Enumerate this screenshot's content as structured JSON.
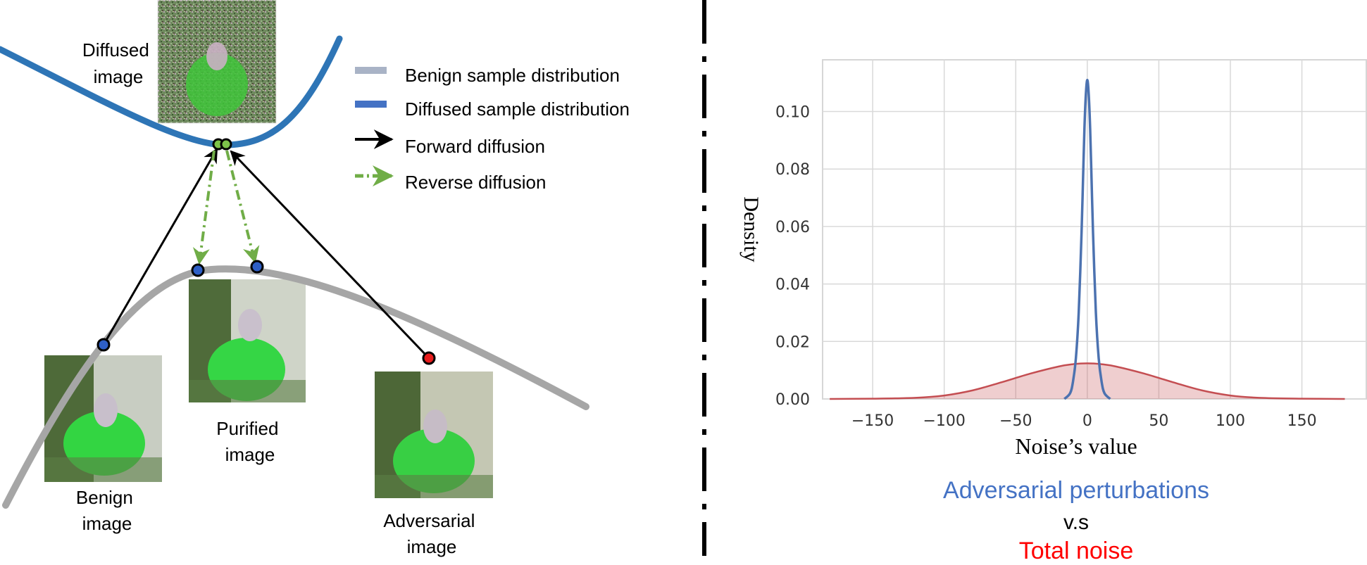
{
  "diagram": {
    "legend": {
      "items": [
        {
          "label": "Benign sample distribution",
          "color": "#a9b3c6"
        },
        {
          "label": "Diffused sample distribution",
          "color": "#4472c4"
        },
        {
          "label": "Forward diffusion",
          "color": "#000000"
        },
        {
          "label": "Reverse diffusion",
          "color": "#70ad47"
        }
      ]
    },
    "images": {
      "diffused": [
        "Diffused",
        "image"
      ],
      "purified": [
        "Purified",
        "image"
      ],
      "benign": [
        "Benign",
        "image"
      ],
      "adversarial": [
        "Adversarial",
        "image"
      ]
    },
    "colors": {
      "benign_curve": "#a6a6a6",
      "diffused_curve": "#2e75b6",
      "benign_point": "#2e5fc6",
      "adversarial_point": "#e81d1d",
      "diffused_point": "#7dc24a"
    }
  },
  "chart_data": {
    "type": "line",
    "xlabel": "Noise’s value",
    "ylabel": "Density",
    "xlim": [
      -185,
      195
    ],
    "ylim": [
      0,
      0.118
    ],
    "x_ticks": [
      -150,
      -100,
      -50,
      0,
      50,
      100,
      150
    ],
    "y_ticks": [
      0.0,
      0.02,
      0.04,
      0.06,
      0.08,
      0.1
    ],
    "x_tick_labels": [
      "−150",
      "−100",
      "−50",
      "0",
      "50",
      "100",
      "150"
    ],
    "y_tick_labels": [
      "0.00",
      "0.02",
      "0.04",
      "0.06",
      "0.08",
      "0.10"
    ],
    "grid": true,
    "series": [
      {
        "name": "Adversarial perturbations",
        "color": "#4c72b0",
        "fill": false,
        "x": [
          -16,
          -12,
          -10,
          -8,
          -6,
          -4,
          -3,
          -2,
          -1,
          0,
          1,
          2,
          3,
          4,
          6,
          8,
          10,
          12,
          16
        ],
        "y": [
          0.0,
          0.002,
          0.006,
          0.014,
          0.03,
          0.058,
          0.076,
          0.094,
          0.106,
          0.111,
          0.106,
          0.094,
          0.076,
          0.058,
          0.03,
          0.014,
          0.006,
          0.002,
          0.0
        ]
      },
      {
        "name": "Total noise",
        "color": "#c44e52",
        "fill": true,
        "x": [
          -180,
          -150,
          -120,
          -100,
          -80,
          -60,
          -40,
          -20,
          -10,
          0,
          10,
          20,
          40,
          60,
          80,
          100,
          120,
          150,
          180
        ],
        "y": [
          0.0,
          0.0001,
          0.0004,
          0.0012,
          0.003,
          0.0058,
          0.0088,
          0.0113,
          0.0121,
          0.0124,
          0.0121,
          0.0113,
          0.0088,
          0.0058,
          0.003,
          0.0012,
          0.0004,
          0.0001,
          0.0
        ]
      }
    ],
    "caption": {
      "line1": "Adversarial perturbations",
      "line2": "v.s",
      "line3": "Total noise",
      "line1_color": "#4472c4",
      "line2_color": "#000000",
      "line3_color": "#ff0000"
    }
  }
}
